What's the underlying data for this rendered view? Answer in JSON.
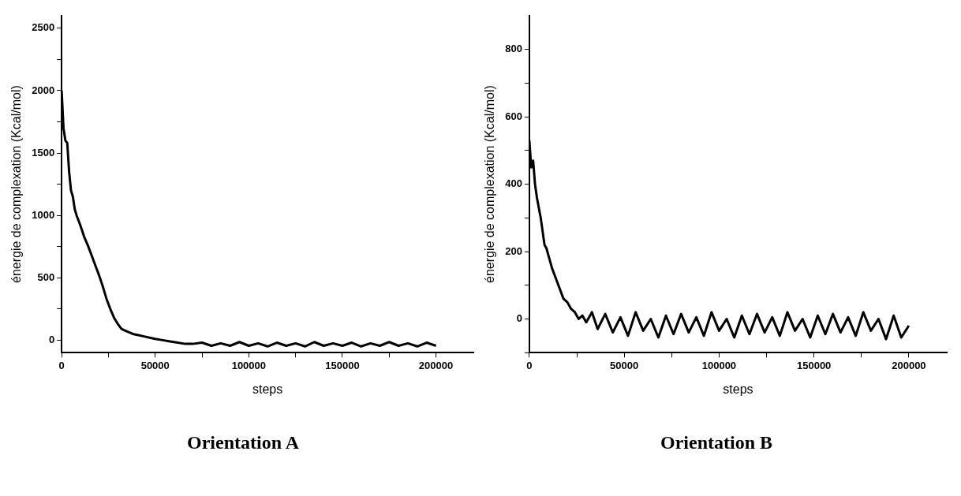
{
  "chart_data": [
    {
      "type": "line",
      "title": "Orientation A",
      "xlabel": "steps",
      "ylabel": "énergie de complexation (Kcal/mol)",
      "xlim": [
        0,
        220000
      ],
      "ylim": [
        -100,
        2600
      ],
      "xticks": [
        0,
        {
          "value": 25000,
          "label": null
        },
        50000,
        {
          "value": 75000,
          "label": null
        },
        100000,
        {
          "value": 125000,
          "label": null
        },
        150000,
        {
          "value": 175000,
          "label": null
        },
        200000
      ],
      "yticks": [
        0,
        {
          "value": 250,
          "label": null
        },
        500,
        {
          "value": 750,
          "label": null
        },
        1000,
        {
          "value": 1250,
          "label": null
        },
        1500,
        {
          "value": 1750,
          "label": null
        },
        2000,
        {
          "value": 2250,
          "label": null
        },
        2500
      ],
      "grid": false,
      "legend": false,
      "marker": "none",
      "series": [
        {
          "color": "#000000",
          "x": [
            0,
            1000,
            2000,
            3000,
            4000,
            5000,
            6000,
            7000,
            8000,
            10000,
            12000,
            14000,
            16000,
            18000,
            20000,
            22000,
            24000,
            26000,
            28000,
            30000,
            32000,
            35000,
            38000,
            41000,
            44000,
            47000,
            50000,
            54000,
            58000,
            62000,
            66000,
            70000,
            75000,
            80000,
            85000,
            90000,
            95000,
            100000,
            105000,
            110000,
            115000,
            120000,
            125000,
            130000,
            135000,
            140000,
            145000,
            150000,
            155000,
            160000,
            165000,
            170000,
            175000,
            180000,
            185000,
            190000,
            195000,
            200000
          ],
          "values": [
            2000,
            1700,
            1600,
            1580,
            1350,
            1200,
            1150,
            1050,
            1000,
            920,
            830,
            760,
            680,
            600,
            520,
            430,
            330,
            250,
            180,
            130,
            90,
            70,
            50,
            40,
            30,
            20,
            10,
            0,
            -10,
            -20,
            -30,
            -30,
            -20,
            -45,
            -25,
            -45,
            -15,
            -45,
            -25,
            -50,
            -20,
            -45,
            -25,
            -50,
            -15,
            -45,
            -25,
            -45,
            -20,
            -50,
            -25,
            -45,
            -15,
            -45,
            -25,
            -50,
            -20,
            -45
          ]
        }
      ]
    },
    {
      "type": "line",
      "title": "Orientation  B",
      "xlabel": "steps",
      "ylabel": "énergie de complexation (Kcal/mol)",
      "xlim": [
        0,
        220000
      ],
      "ylim": [
        -100,
        900
      ],
      "xticks": [
        0,
        {
          "value": 25000,
          "label": null
        },
        50000,
        {
          "value": 75000,
          "label": null
        },
        100000,
        {
          "value": 125000,
          "label": null
        },
        150000,
        {
          "value": 175000,
          "label": null
        },
        200000
      ],
      "yticks": [
        {
          "value": -100,
          "label": null
        },
        0,
        {
          "value": 100,
          "label": null
        },
        200,
        {
          "value": 300,
          "label": null
        },
        400,
        {
          "value": 500,
          "label": null
        },
        600,
        {
          "value": 700,
          "label": null
        },
        800
      ],
      "grid": false,
      "legend": false,
      "marker": "none",
      "series": [
        {
          "color": "#000000",
          "x": [
            0,
            1000,
            2000,
            3000,
            4000,
            5000,
            6000,
            7000,
            8000,
            9000,
            10000,
            12000,
            14000,
            16000,
            18000,
            20000,
            22000,
            24000,
            26000,
            28000,
            30000,
            33000,
            36000,
            40000,
            44000,
            48000,
            52000,
            56000,
            60000,
            64000,
            68000,
            72000,
            76000,
            80000,
            84000,
            88000,
            92000,
            96000,
            100000,
            104000,
            108000,
            112000,
            116000,
            120000,
            124000,
            128000,
            132000,
            136000,
            140000,
            144000,
            148000,
            152000,
            156000,
            160000,
            164000,
            168000,
            172000,
            176000,
            180000,
            184000,
            188000,
            192000,
            196000,
            200000
          ],
          "values": [
            530,
            450,
            470,
            400,
            360,
            330,
            300,
            260,
            220,
            210,
            190,
            150,
            120,
            90,
            60,
            50,
            30,
            20,
            0,
            10,
            -10,
            20,
            -30,
            15,
            -40,
            5,
            -50,
            20,
            -35,
            0,
            -55,
            10,
            -45,
            15,
            -40,
            5,
            -50,
            20,
            -35,
            0,
            -55,
            10,
            -45,
            15,
            -40,
            5,
            -50,
            20,
            -35,
            0,
            -55,
            10,
            -45,
            15,
            -40,
            5,
            -50,
            20,
            -35,
            0,
            -60,
            10,
            -55,
            -20
          ]
        }
      ]
    }
  ]
}
